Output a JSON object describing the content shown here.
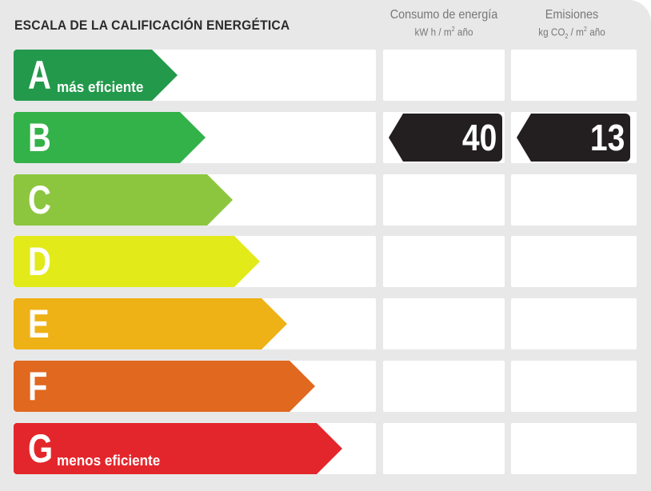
{
  "title": "ESCALA DE LA CALIFICACIÓN ENERGÉTICA",
  "columns": {
    "consumo": {
      "title": "Consumo de energía",
      "unit_pre": "kW h / m",
      "unit_sup": "2",
      "unit_post": " año"
    },
    "emisiones": {
      "title": "Emisiones",
      "unit_pre": "kg CO",
      "unit_sub": "2",
      "unit_mid": " / m",
      "unit_sup": "2",
      "unit_post": " año"
    }
  },
  "ratings": [
    {
      "letter": "A",
      "label": "más eficiente",
      "color": "#23994b"
    },
    {
      "letter": "B",
      "label": "",
      "color": "#33b249"
    },
    {
      "letter": "C",
      "label": "",
      "color": "#8cc63e"
    },
    {
      "letter": "D",
      "label": "",
      "color": "#e2ea19"
    },
    {
      "letter": "E",
      "label": "",
      "color": "#eeb116"
    },
    {
      "letter": "F",
      "label": "",
      "color": "#e0681f"
    },
    {
      "letter": "G",
      "label": "menos eficiente",
      "color": "#e3262b"
    }
  ],
  "result": {
    "rating": "B",
    "consumo": "40",
    "emisiones": "13",
    "marker_color": "#231f20"
  }
}
